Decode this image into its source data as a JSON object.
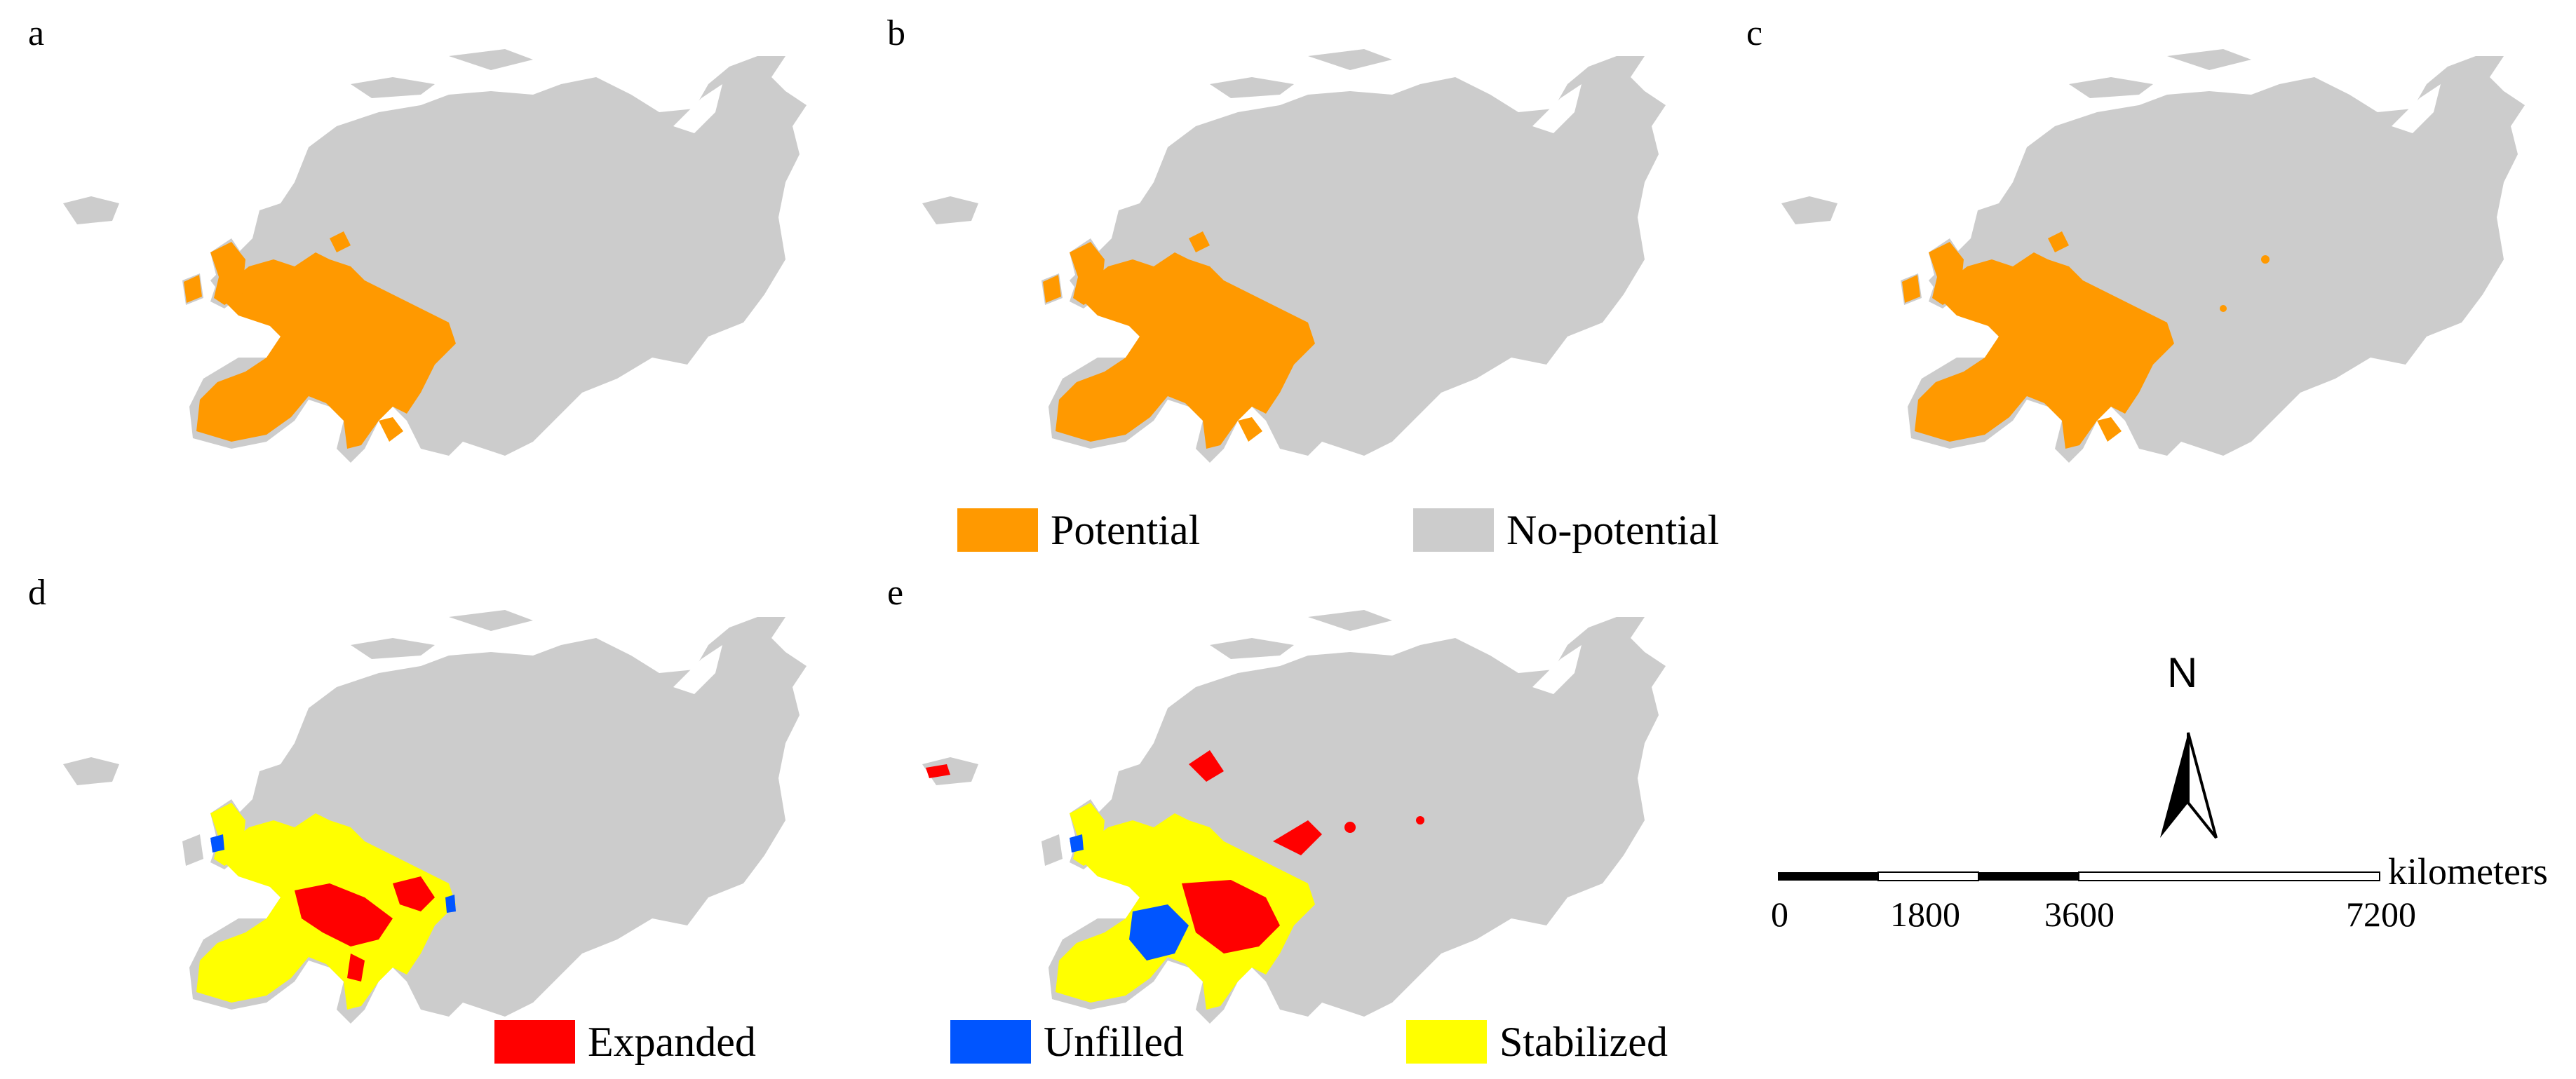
{
  "panels": [
    {
      "label": "a",
      "type": "potential"
    },
    {
      "label": "b",
      "type": "potential"
    },
    {
      "label": "c",
      "type": "potential"
    },
    {
      "label": "d",
      "type": "dynamics"
    },
    {
      "label": "e",
      "type": "dynamics"
    }
  ],
  "legend_top": {
    "potential": {
      "label": "Potential",
      "color": "#FF9900"
    },
    "no_potential": {
      "label": "No-potential",
      "color": "#CCCCCC"
    }
  },
  "legend_bottom": {
    "expanded": {
      "label": "Expanded",
      "color": "#FF0000"
    },
    "unfilled": {
      "label": "Unfilled",
      "color": "#0055FF"
    },
    "stabilized": {
      "label": "Stabilized",
      "color": "#FFFF00"
    }
  },
  "north_arrow": {
    "label": "N"
  },
  "scale_bar": {
    "unit": "kilometers",
    "ticks": [
      "0",
      "1800",
      "3600",
      "7200"
    ]
  }
}
